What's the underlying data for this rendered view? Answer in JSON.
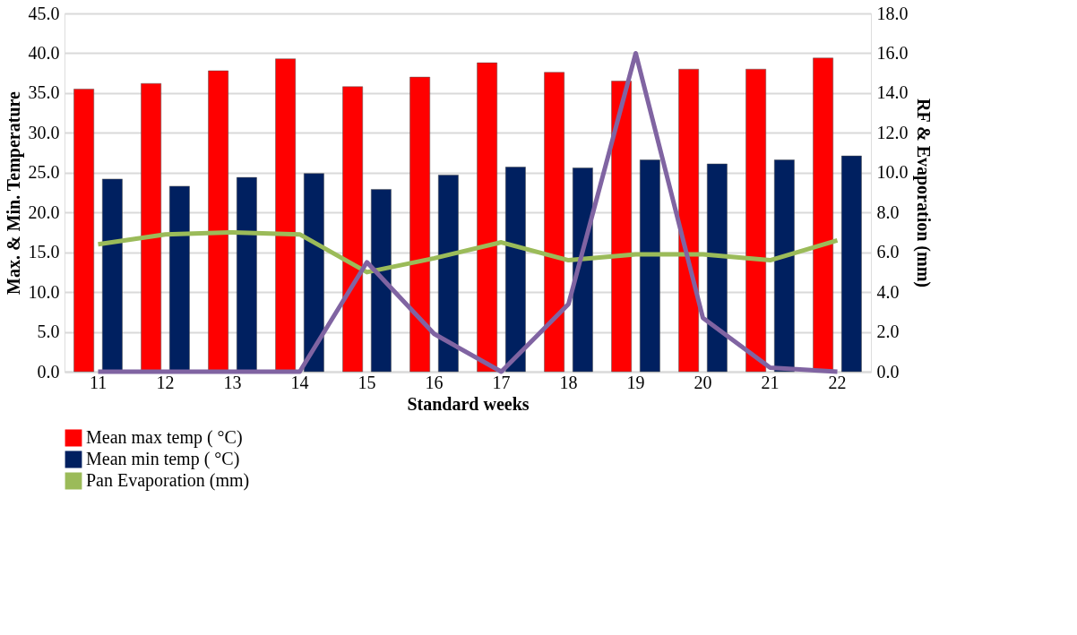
{
  "chart_data": {
    "type": "bar",
    "xlabel": "Standard weeks",
    "ylabel": "Max. & Min.  Temperature",
    "y2label": "RF & Evaporation (mm)",
    "categories": [
      "11",
      "12",
      "13",
      "14",
      "15",
      "16",
      "17",
      "18",
      "19",
      "20",
      "21",
      "22"
    ],
    "series": [
      {
        "name": "Mean max temp ( °C)",
        "color": "#ff0000",
        "values": [
          35.5,
          36.2,
          37.8,
          39.3,
          35.8,
          37.0,
          38.8,
          37.6,
          36.5,
          38.0,
          38.0,
          39.4
        ]
      },
      {
        "name": "Mean min temp ( °C)",
        "color": "#002060",
        "values": [
          24.2,
          23.3,
          24.4,
          24.9,
          22.9,
          24.7,
          25.7,
          25.6,
          26.6,
          26.1,
          26.6,
          27.1
        ]
      },
      {
        "name": "Pan Evaporation (mm)",
        "type": "line",
        "axis": "y2",
        "color": "#9bbb59",
        "values": [
          6.4,
          6.9,
          7.0,
          6.9,
          5.0,
          5.7,
          6.5,
          5.6,
          5.9,
          5.9,
          5.6,
          6.6
        ]
      },
      {
        "type": "line",
        "axis": "y2",
        "color": "#8064a2",
        "values": [
          0,
          0,
          0,
          0,
          5.5,
          1.9,
          0,
          3.4,
          16.0,
          2.7,
          0.2,
          0
        ]
      }
    ],
    "ylim": [
      0,
      45
    ],
    "yticks": [
      {
        "value": 0,
        "label": "0.0"
      },
      {
        "value": 5,
        "label": "5.0"
      },
      {
        "value": 10,
        "label": "10.0"
      },
      {
        "value": 15,
        "label": "15.0"
      },
      {
        "value": 20,
        "label": "20.0"
      },
      {
        "value": 25,
        "label": "25.0"
      },
      {
        "value": 30,
        "label": "30.0"
      },
      {
        "value": 35,
        "label": "35.0"
      },
      {
        "value": 40,
        "label": "40.0"
      },
      {
        "value": 45,
        "label": "45.0"
      }
    ],
    "y2lim": [
      0,
      18
    ],
    "y2ticks": [
      {
        "value": 0,
        "label": "0.0"
      },
      {
        "value": 2,
        "label": "2.0"
      },
      {
        "value": 4,
        "label": "4.0"
      },
      {
        "value": 6,
        "label": "6.0"
      },
      {
        "value": 8,
        "label": "8.0"
      },
      {
        "value": 10,
        "label": "10.0"
      },
      {
        "value": 12,
        "label": "12.0"
      },
      {
        "value": 14,
        "label": "14.0"
      },
      {
        "value": 16,
        "label": "16.0"
      },
      {
        "value": 18,
        "label": "18.0"
      }
    ],
    "grid": "y",
    "legend": "bottom"
  }
}
